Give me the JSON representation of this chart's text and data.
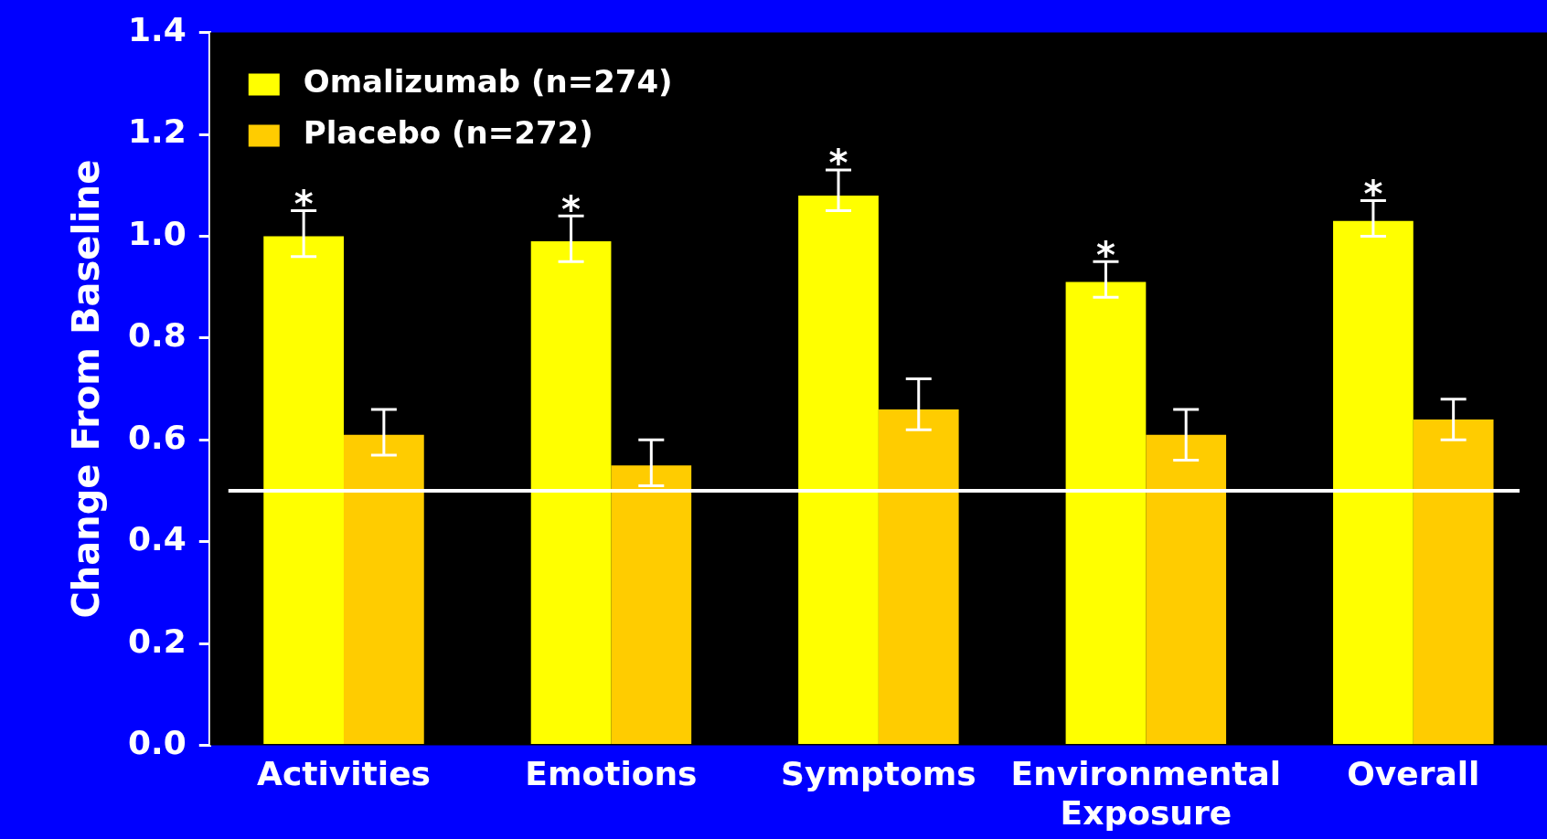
{
  "chart_data": {
    "type": "bar",
    "ylabel": "Change From Baseline",
    "categories": [
      "Activities",
      "Emotions",
      "Symptoms",
      "Environmental Exposure",
      "Overall"
    ],
    "series": [
      {
        "name": "Omalizumab (n=274)",
        "color": "#ffff00",
        "values": [
          1.0,
          0.99,
          1.08,
          0.91,
          1.03
        ],
        "errors": [
          [
            0.96,
            1.05
          ],
          [
            0.95,
            1.04
          ],
          [
            1.05,
            1.13
          ],
          [
            0.88,
            0.95
          ],
          [
            1.0,
            1.07
          ]
        ]
      },
      {
        "name": "Placebo (n=272)",
        "color": "#ffcc00",
        "values": [
          0.61,
          0.55,
          0.66,
          0.61,
          0.64
        ],
        "errors": [
          [
            0.57,
            0.66
          ],
          [
            0.51,
            0.6
          ],
          [
            0.62,
            0.72
          ],
          [
            0.56,
            0.66
          ],
          [
            0.6,
            0.68
          ]
        ]
      }
    ],
    "ylim": [
      0,
      1.4
    ],
    "yticks": [
      {
        "value": 0,
        "label": "0.0"
      },
      {
        "value": 0.2,
        "label": "0.2"
      },
      {
        "value": 0.4,
        "label": "0.4"
      },
      {
        "value": 0.6,
        "label": "0.6"
      },
      {
        "value": 0.8,
        "label": "0.8"
      },
      {
        "value": 1,
        "label": "1.0"
      },
      {
        "value": 1.2,
        "label": "1.2"
      },
      {
        "value": 1.4,
        "label": "1.4"
      }
    ],
    "ref_lines": [
      {
        "axis": "y",
        "value": 0.5,
        "color": "#ffffff"
      }
    ],
    "annotations": [
      {
        "text": "*",
        "x": "Activities",
        "y": 1.0
      },
      {
        "text": "*",
        "x": "Emotions",
        "y": 0.99
      },
      {
        "text": "*",
        "x": "Symptoms",
        "y": 1.08
      },
      {
        "text": "*",
        "x": "Environmental Exposure",
        "y": 0.91
      },
      {
        "text": "*",
        "x": "Overall",
        "y": 1.03
      }
    ],
    "grid": false,
    "legend": "top left"
  }
}
